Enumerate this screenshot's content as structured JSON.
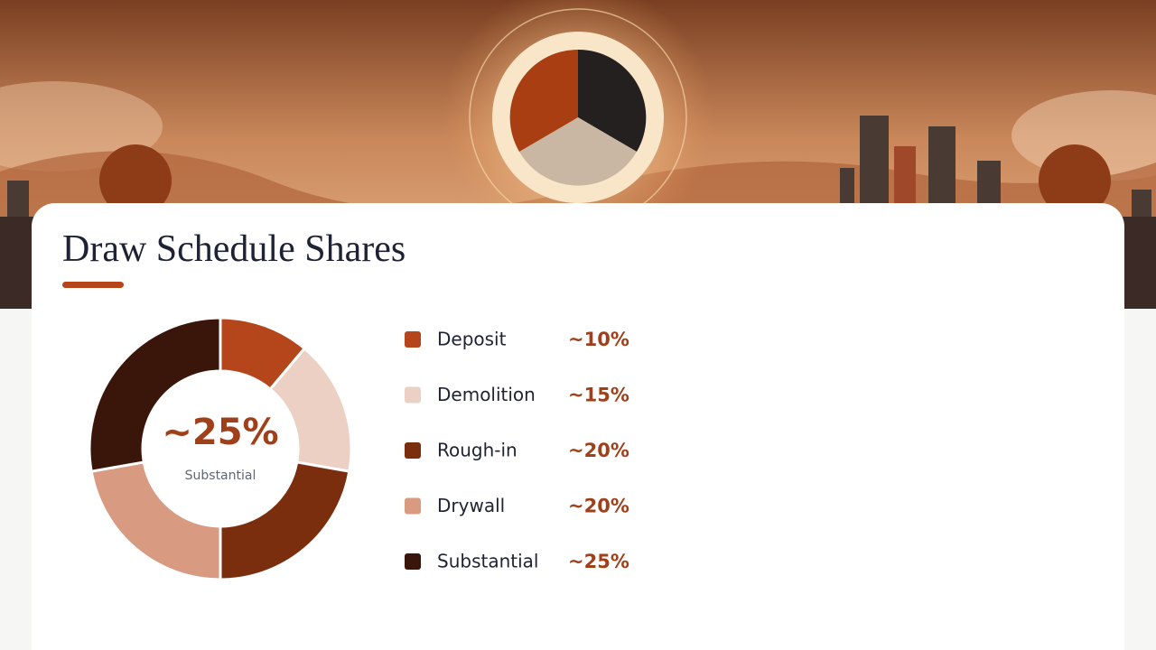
{
  "chart_data": {
    "type": "donut",
    "title": "Draw Schedule Shares",
    "categories": [
      "Deposit",
      "Demolition",
      "Rough-in",
      "Drywall",
      "Substantial"
    ],
    "values": [
      10,
      15,
      20,
      20,
      25
    ],
    "value_labels": [
      "~10%",
      "~15%",
      "~20%",
      "~20%",
      "~25%"
    ],
    "colors": [
      "#b5451b",
      "#ecd0c4",
      "#7a2e0e",
      "#d99a82",
      "#3a160a"
    ],
    "highlight_index": 4
  }
}
